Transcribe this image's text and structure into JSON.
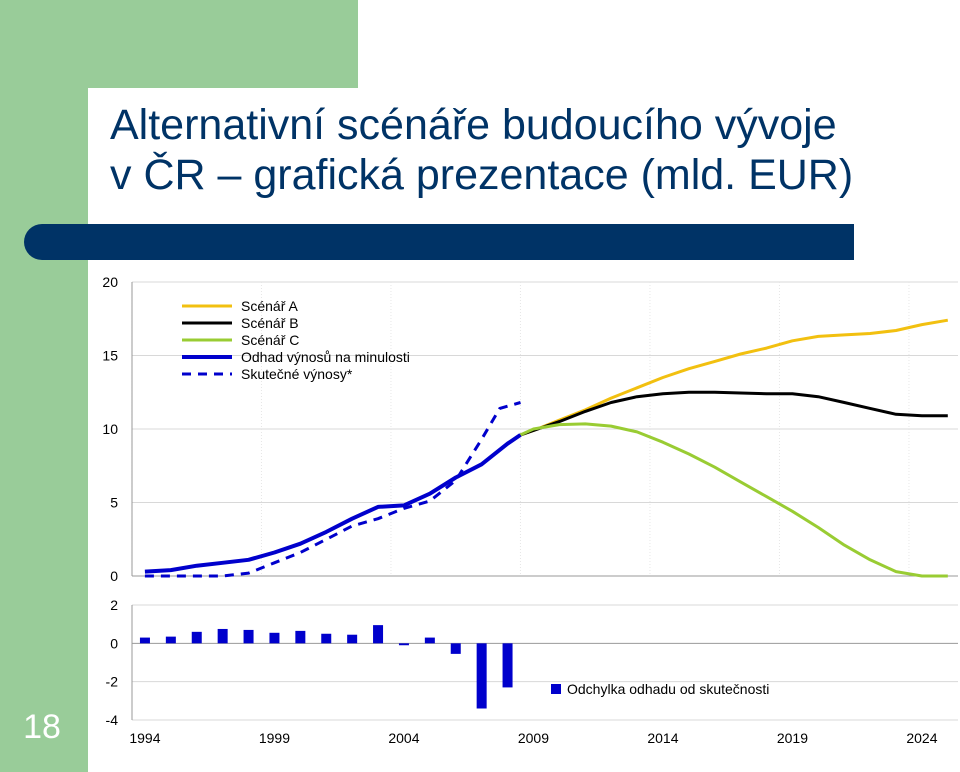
{
  "slide": {
    "title_line1": "Alternativní scénáře budoucího vývoje",
    "title_line2": "v ČR – grafická prezentace (mld. EUR)",
    "slide_number": "18",
    "colors": {
      "title": "#003366",
      "band": "#003366",
      "side": "#99cc99"
    }
  },
  "chart_data": [
    {
      "type": "line",
      "ylim": [
        0,
        20
      ],
      "yticks": [
        "0",
        "5",
        "10",
        "15",
        "20"
      ],
      "xlim": [
        1994,
        2025
      ],
      "grid": true,
      "legend_position": "top-left",
      "series": [
        {
          "name": "Scénář A",
          "color": "#f2c010",
          "style": "solid",
          "points": [
            [
              2008.5,
              9.6
            ],
            [
              2009,
              9.9
            ],
            [
              2010,
              10.6
            ],
            [
              2011,
              11.3
            ],
            [
              2012,
              12.1
            ],
            [
              2013,
              12.8
            ],
            [
              2014,
              13.5
            ],
            [
              2015,
              14.1
            ],
            [
              2016,
              14.6
            ],
            [
              2017,
              15.1
            ],
            [
              2018,
              15.5
            ],
            [
              2019,
              16.0
            ],
            [
              2020,
              16.3
            ],
            [
              2021,
              16.4
            ],
            [
              2022,
              16.5
            ],
            [
              2023,
              16.7
            ],
            [
              2024,
              17.1
            ],
            [
              2025,
              17.4
            ]
          ]
        },
        {
          "name": "Scénář B",
          "color": "#000000",
          "style": "solid",
          "points": [
            [
              2008.5,
              9.6
            ],
            [
              2009,
              9.9
            ],
            [
              2010,
              10.5
            ],
            [
              2011,
              11.2
            ],
            [
              2012,
              11.8
            ],
            [
              2013,
              12.2
            ],
            [
              2014,
              12.4
            ],
            [
              2015,
              12.5
            ],
            [
              2016,
              12.5
            ],
            [
              2017,
              12.45
            ],
            [
              2018,
              12.4
            ],
            [
              2019,
              12.4
            ],
            [
              2020,
              12.2
            ],
            [
              2021,
              11.8
            ],
            [
              2022,
              11.4
            ],
            [
              2023,
              11.0
            ],
            [
              2024,
              10.9
            ],
            [
              2025,
              10.9
            ]
          ]
        },
        {
          "name": "Scénář C",
          "color": "#99cc33",
          "style": "solid",
          "points": [
            [
              2008.5,
              9.6
            ],
            [
              2009,
              10.0
            ],
            [
              2010,
              10.3
            ],
            [
              2011,
              10.35
            ],
            [
              2012,
              10.2
            ],
            [
              2013,
              9.8
            ],
            [
              2014,
              9.1
            ],
            [
              2015,
              8.3
            ],
            [
              2016,
              7.4
            ],
            [
              2017,
              6.4
            ],
            [
              2018,
              5.4
            ],
            [
              2019,
              4.4
            ],
            [
              2020,
              3.3
            ],
            [
              2021,
              2.1
            ],
            [
              2022,
              1.1
            ],
            [
              2023,
              0.3
            ],
            [
              2024,
              0.0
            ],
            [
              2025,
              0.0
            ]
          ]
        },
        {
          "name": "Odhad výnosů na minulosti",
          "color": "#0000cc",
          "style": "solid",
          "points": [
            [
              1994,
              0.3
            ],
            [
              1995,
              0.4
            ],
            [
              1996,
              0.7
            ],
            [
              1997,
              0.9
            ],
            [
              1998,
              1.1
            ],
            [
              1999,
              1.6
            ],
            [
              2000,
              2.2
            ],
            [
              2001,
              3.0
            ],
            [
              2002,
              3.9
            ],
            [
              2003,
              4.7
            ],
            [
              2004,
              4.8
            ],
            [
              2005,
              5.6
            ],
            [
              2006,
              6.7
            ],
            [
              2007,
              7.6
            ],
            [
              2008,
              9.0
            ],
            [
              2008.5,
              9.6
            ]
          ]
        },
        {
          "name": "Skutečné výnosy*",
          "color": "#0000cc",
          "style": "dashed",
          "points": [
            [
              1994,
              0
            ],
            [
              1995,
              0
            ],
            [
              1996,
              0
            ],
            [
              1997,
              0
            ],
            [
              1998,
              0.2
            ],
            [
              1999,
              0.9
            ],
            [
              2000,
              1.6
            ],
            [
              2001,
              2.5
            ],
            [
              2002,
              3.4
            ],
            [
              2003,
              3.9
            ],
            [
              2004,
              4.6
            ],
            [
              2005,
              5.1
            ],
            [
              2006,
              6.5
            ],
            [
              2007,
              9.3
            ],
            [
              2007.7,
              11.4
            ],
            [
              2008.5,
              11.8
            ]
          ]
        }
      ]
    },
    {
      "type": "bar",
      "ylim": [
        -4,
        2
      ],
      "yticks": [
        "-4",
        "-2",
        "0",
        "2"
      ],
      "color": "#0000cc",
      "series": [
        {
          "name": "Odchylka odhadu od skutečnosti",
          "x": [
            1994,
            1995,
            1996,
            1997,
            1998,
            1999,
            2000,
            2001,
            2002,
            2003,
            2004,
            2005,
            2006,
            2007,
            2008
          ],
          "values": [
            0.3,
            0.35,
            0.6,
            0.75,
            0.7,
            0.55,
            0.65,
            0.5,
            0.45,
            0.95,
            -0.1,
            0.3,
            -0.55,
            -3.4,
            -2.3
          ]
        }
      ],
      "xtick_labels": [
        "1994",
        "1999",
        "2004",
        "2009",
        "2014",
        "2019",
        "2024"
      ],
      "xticks": [
        1994,
        1999,
        2004,
        2009,
        2014,
        2019,
        2024
      ]
    }
  ]
}
